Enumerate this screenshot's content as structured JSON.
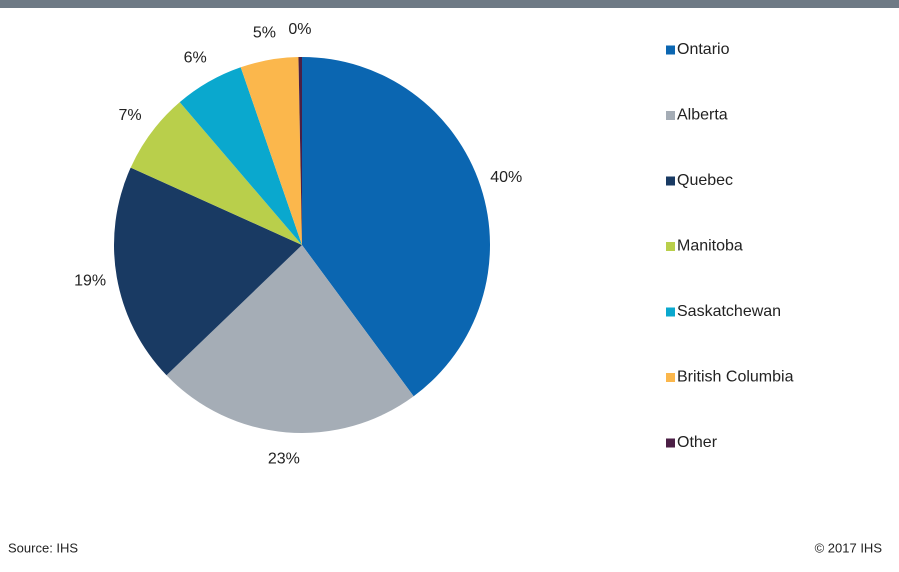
{
  "chart_data": {
    "type": "pie",
    "categories": [
      "Ontario",
      "Alberta",
      "Quebec",
      "Manitoba",
      "Saskatchewan",
      "British Columbia",
      "Other"
    ],
    "values": [
      40,
      23,
      19,
      7,
      6,
      5,
      0.3
    ],
    "value_labels": [
      "40%",
      "23%",
      "19%",
      "7%",
      "6%",
      "5%",
      "0%"
    ],
    "colors": [
      "#0b66b1",
      "#a5adb6",
      "#193a63",
      "#b9cf4b",
      "#0aa8ce",
      "#fbb74c",
      "#4b1f45"
    ],
    "legend": "right",
    "source": "Source: IHS",
    "copyright": "© 2017 IHS"
  }
}
